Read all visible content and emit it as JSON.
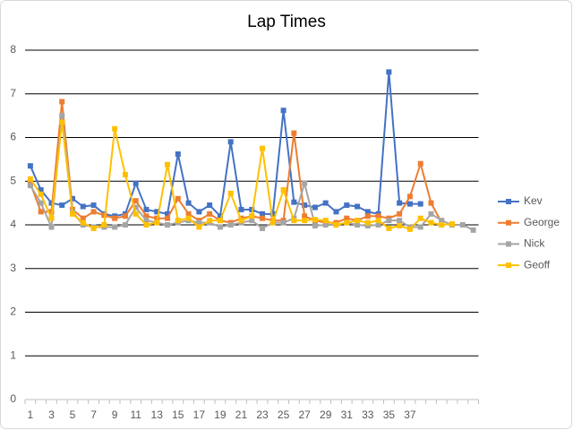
{
  "chart_data": {
    "type": "line",
    "title": "Lap Times",
    "categories": [
      1,
      null,
      3,
      null,
      5,
      null,
      7,
      null,
      9,
      null,
      11,
      null,
      13,
      null,
      15,
      null,
      17,
      null,
      19,
      null,
      21,
      null,
      23,
      null,
      25,
      null,
      27,
      null,
      29,
      null,
      31,
      null,
      33,
      null,
      35,
      null,
      37,
      null,
      null,
      null,
      null,
      null,
      null
    ],
    "ylim": [
      0,
      8
    ],
    "yticks": [
      0,
      1,
      2,
      3,
      4,
      5,
      6,
      7,
      8
    ],
    "grid": true,
    "legend": "right",
    "series": [
      {
        "name": "Kev",
        "color": "#4472c4",
        "values": [
          5.35,
          4.8,
          4.5,
          4.45,
          4.6,
          4.42,
          4.45,
          4.25,
          4.2,
          4.25,
          4.95,
          4.35,
          4.3,
          4.25,
          5.62,
          4.5,
          4.3,
          4.45,
          4.2,
          5.9,
          4.35,
          4.35,
          4.25,
          4.25,
          6.62,
          4.52,
          4.45,
          4.4,
          4.5,
          4.3,
          4.45,
          4.42,
          4.3,
          4.25,
          7.5,
          4.5,
          4.48,
          4.48,
          null,
          null,
          null,
          null,
          null
        ]
      },
      {
        "name": "George",
        "color": "#ed7d31",
        "values": [
          4.95,
          4.3,
          4.3,
          6.82,
          4.35,
          4.15,
          4.3,
          4.22,
          4.15,
          4.2,
          4.55,
          4.2,
          4.15,
          4.15,
          4.6,
          4.25,
          4.1,
          4.25,
          4.1,
          4.05,
          4.15,
          4.2,
          4.15,
          4.1,
          4.1,
          6.1,
          4.2,
          4.1,
          4.05,
          4.05,
          4.15,
          4.1,
          4.2,
          4.2,
          4.15,
          4.25,
          4.65,
          5.4,
          4.5,
          4.05,
          null,
          null,
          null
        ]
      },
      {
        "name": "Nick",
        "color": "#a5a5a5",
        "values": [
          4.9,
          4.5,
          3.95,
          6.5,
          4.3,
          4.0,
          3.95,
          3.95,
          3.95,
          4.0,
          4.4,
          4.1,
          4.05,
          4.0,
          4.05,
          4.1,
          4.05,
          4.05,
          3.95,
          4.0,
          4.05,
          4.1,
          3.92,
          4.05,
          4.05,
          4.15,
          4.95,
          3.98,
          4.0,
          4.0,
          4.05,
          4.0,
          3.98,
          4.0,
          4.1,
          4.1,
          3.95,
          3.95,
          4.25,
          4.1,
          4.0,
          4.0,
          3.88
        ]
      },
      {
        "name": "Geoff",
        "color": "#ffc000",
        "values": [
          5.05,
          4.7,
          4.15,
          6.35,
          4.25,
          4.05,
          3.92,
          4.0,
          6.2,
          5.15,
          4.25,
          4.0,
          4.05,
          5.38,
          4.1,
          4.15,
          3.95,
          4.1,
          4.1,
          4.72,
          4.1,
          4.2,
          5.75,
          4.05,
          4.8,
          4.1,
          4.1,
          4.12,
          4.1,
          4.0,
          4.05,
          4.1,
          4.05,
          4.1,
          3.92,
          3.98,
          3.9,
          4.15,
          4.05,
          4.0,
          4.02,
          null,
          null
        ]
      }
    ]
  }
}
